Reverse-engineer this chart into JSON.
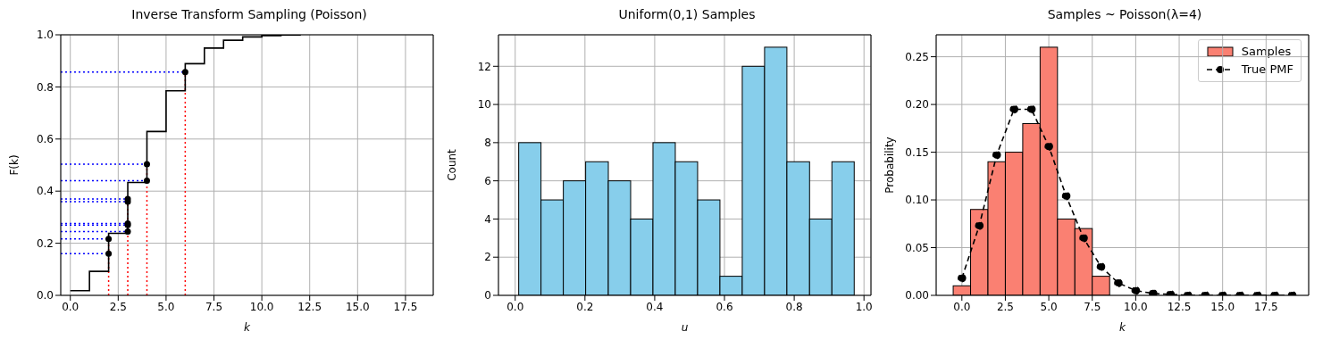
{
  "chart_data": [
    {
      "type": "step",
      "title": "Inverse Transform Sampling (Poisson)",
      "xlabel": "k",
      "ylabel": "F(k)",
      "xlim": [
        -0.5,
        18.95
      ],
      "xticks": [
        {
          "value": 0,
          "label": "0.0"
        },
        {
          "value": 2.5,
          "label": "2.5"
        },
        {
          "value": 5,
          "label": "5.0"
        },
        {
          "value": 7.5,
          "label": "7.5"
        },
        {
          "value": 10,
          "label": "10.0"
        },
        {
          "value": 12.5,
          "label": "12.5"
        },
        {
          "value": 15,
          "label": "15.0"
        },
        {
          "value": 17.5,
          "label": "17.5"
        }
      ],
      "ylim": [
        0,
        1
      ],
      "yticks": [
        {
          "value": 0,
          "label": "0.0"
        },
        {
          "value": 0.2,
          "label": "0.2"
        },
        {
          "value": 0.4,
          "label": "0.4"
        },
        {
          "value": 0.6,
          "label": "0.6"
        },
        {
          "value": 0.8,
          "label": "0.8"
        },
        {
          "value": 1,
          "label": "1.0"
        }
      ],
      "grid": true,
      "series": [
        {
          "color": "#000000",
          "x": [
            0,
            1,
            2,
            3,
            4,
            5,
            6,
            7,
            8,
            9,
            10,
            11,
            12
          ],
          "values": [
            0.018,
            0.092,
            0.238,
            0.433,
            0.629,
            0.785,
            0.889,
            0.949,
            0.979,
            0.992,
            0.997,
            0.999,
            1.0
          ]
        },
        {
          "type": "scatter",
          "color": "#000000",
          "marker": "circle",
          "x": [
            2,
            2,
            3,
            3,
            3,
            3,
            3,
            4,
            4,
            6
          ],
          "values": [
            0.16,
            0.217,
            0.245,
            0.27,
            0.276,
            0.36,
            0.37,
            0.44,
            0.503,
            0.857
          ]
        }
      ],
      "ref_lines": [
        {
          "axis": "y",
          "value": 0.16,
          "color": "#0000ff",
          "line_style": "dotted"
        },
        {
          "axis": "y",
          "value": 0.217,
          "color": "#0000ff",
          "line_style": "dotted"
        },
        {
          "axis": "y",
          "value": 0.245,
          "color": "#0000ff",
          "line_style": "dotted"
        },
        {
          "axis": "y",
          "value": 0.27,
          "color": "#0000ff",
          "line_style": "dotted"
        },
        {
          "axis": "y",
          "value": 0.276,
          "color": "#0000ff",
          "line_style": "dotted"
        },
        {
          "axis": "y",
          "value": 0.36,
          "color": "#0000ff",
          "line_style": "dotted"
        },
        {
          "axis": "y",
          "value": 0.37,
          "color": "#0000ff",
          "line_style": "dotted"
        },
        {
          "axis": "y",
          "value": 0.44,
          "color": "#0000ff",
          "line_style": "dotted"
        },
        {
          "axis": "y",
          "value": 0.503,
          "color": "#0000ff",
          "line_style": "dotted"
        },
        {
          "axis": "y",
          "value": 0.857,
          "color": "#0000ff",
          "line_style": "dotted"
        },
        {
          "axis": "x",
          "value": 2,
          "color": "#ff0000",
          "line_style": "dotted"
        },
        {
          "axis": "x",
          "value": 3,
          "color": "#ff0000",
          "line_style": "dotted"
        },
        {
          "axis": "x",
          "value": 4,
          "color": "#ff0000",
          "line_style": "dotted"
        },
        {
          "axis": "x",
          "value": 6,
          "color": "#ff0000",
          "line_style": "dotted"
        }
      ]
    },
    {
      "type": "histogram",
      "title": "Uniform(0,1) Samples",
      "xlabel": "u",
      "ylabel": "Count",
      "color": "#87ceeb",
      "bins": [
        0.01,
        0.074,
        0.138,
        0.202,
        0.267,
        0.331,
        0.395,
        0.459,
        0.523,
        0.587,
        0.651,
        0.715,
        0.779,
        0.844,
        0.908,
        0.972
      ],
      "values": [
        8,
        5,
        6,
        7,
        6,
        4,
        8,
        7,
        5,
        1,
        12,
        13,
        7,
        4,
        7
      ],
      "xlim": [
        -0.048,
        1.02
      ],
      "xticks": [
        {
          "value": 0,
          "label": "0.0"
        },
        {
          "value": 0.2,
          "label": "0.2"
        },
        {
          "value": 0.4,
          "label": "0.4"
        },
        {
          "value": 0.6,
          "label": "0.6"
        },
        {
          "value": 0.8,
          "label": "0.8"
        },
        {
          "value": 1,
          "label": "1.0"
        }
      ],
      "ylim": [
        0,
        13.65
      ],
      "yticks": [
        0,
        2,
        4,
        6,
        8,
        10,
        12
      ],
      "grid": true
    },
    {
      "type": "histogram",
      "title": "Samples ~ Poisson(λ=4)",
      "xlabel": "k",
      "ylabel": "Probability",
      "xlim": [
        -1.48,
        19.95
      ],
      "xticks": [
        {
          "value": 0,
          "label": "0.0"
        },
        {
          "value": 2.5,
          "label": "2.5"
        },
        {
          "value": 5,
          "label": "5.0"
        },
        {
          "value": 7.5,
          "label": "7.5"
        },
        {
          "value": 10,
          "label": "10.0"
        },
        {
          "value": 12.5,
          "label": "12.5"
        },
        {
          "value": 15,
          "label": "15.0"
        },
        {
          "value": 17.5,
          "label": "17.5"
        }
      ],
      "ylim": [
        0,
        0.273
      ],
      "yticks": [
        {
          "value": 0,
          "label": "0.00"
        },
        {
          "value": 0.05,
          "label": "0.05"
        },
        {
          "value": 0.1,
          "label": "0.10"
        },
        {
          "value": 0.15,
          "label": "0.15"
        },
        {
          "value": 0.2,
          "label": "0.20"
        },
        {
          "value": 0.25,
          "label": "0.25"
        }
      ],
      "grid": true,
      "legend": "top right",
      "series": [
        {
          "name": "Samples",
          "color": "#fa8072",
          "bins": [
            -0.5,
            0.5,
            1.5,
            2.5,
            3.5,
            4.5,
            5.5,
            6.5,
            7.5,
            8.5
          ],
          "values": [
            0.01,
            0.09,
            0.14,
            0.15,
            0.18,
            0.26,
            0.08,
            0.07,
            0.02
          ]
        },
        {
          "type": "line",
          "name": "True PMF",
          "color": "#000000",
          "marker": "circle",
          "line_style": "dashed",
          "x": [
            0,
            1,
            2,
            3,
            4,
            5,
            6,
            7,
            8,
            9,
            10,
            11,
            12,
            13,
            14,
            15,
            16,
            17,
            18,
            19
          ],
          "values": [
            0.018,
            0.073,
            0.147,
            0.195,
            0.195,
            0.156,
            0.104,
            0.06,
            0.03,
            0.013,
            0.005,
            0.002,
            0.001,
            0,
            0,
            0,
            0,
            0,
            0,
            0
          ]
        }
      ]
    }
  ]
}
